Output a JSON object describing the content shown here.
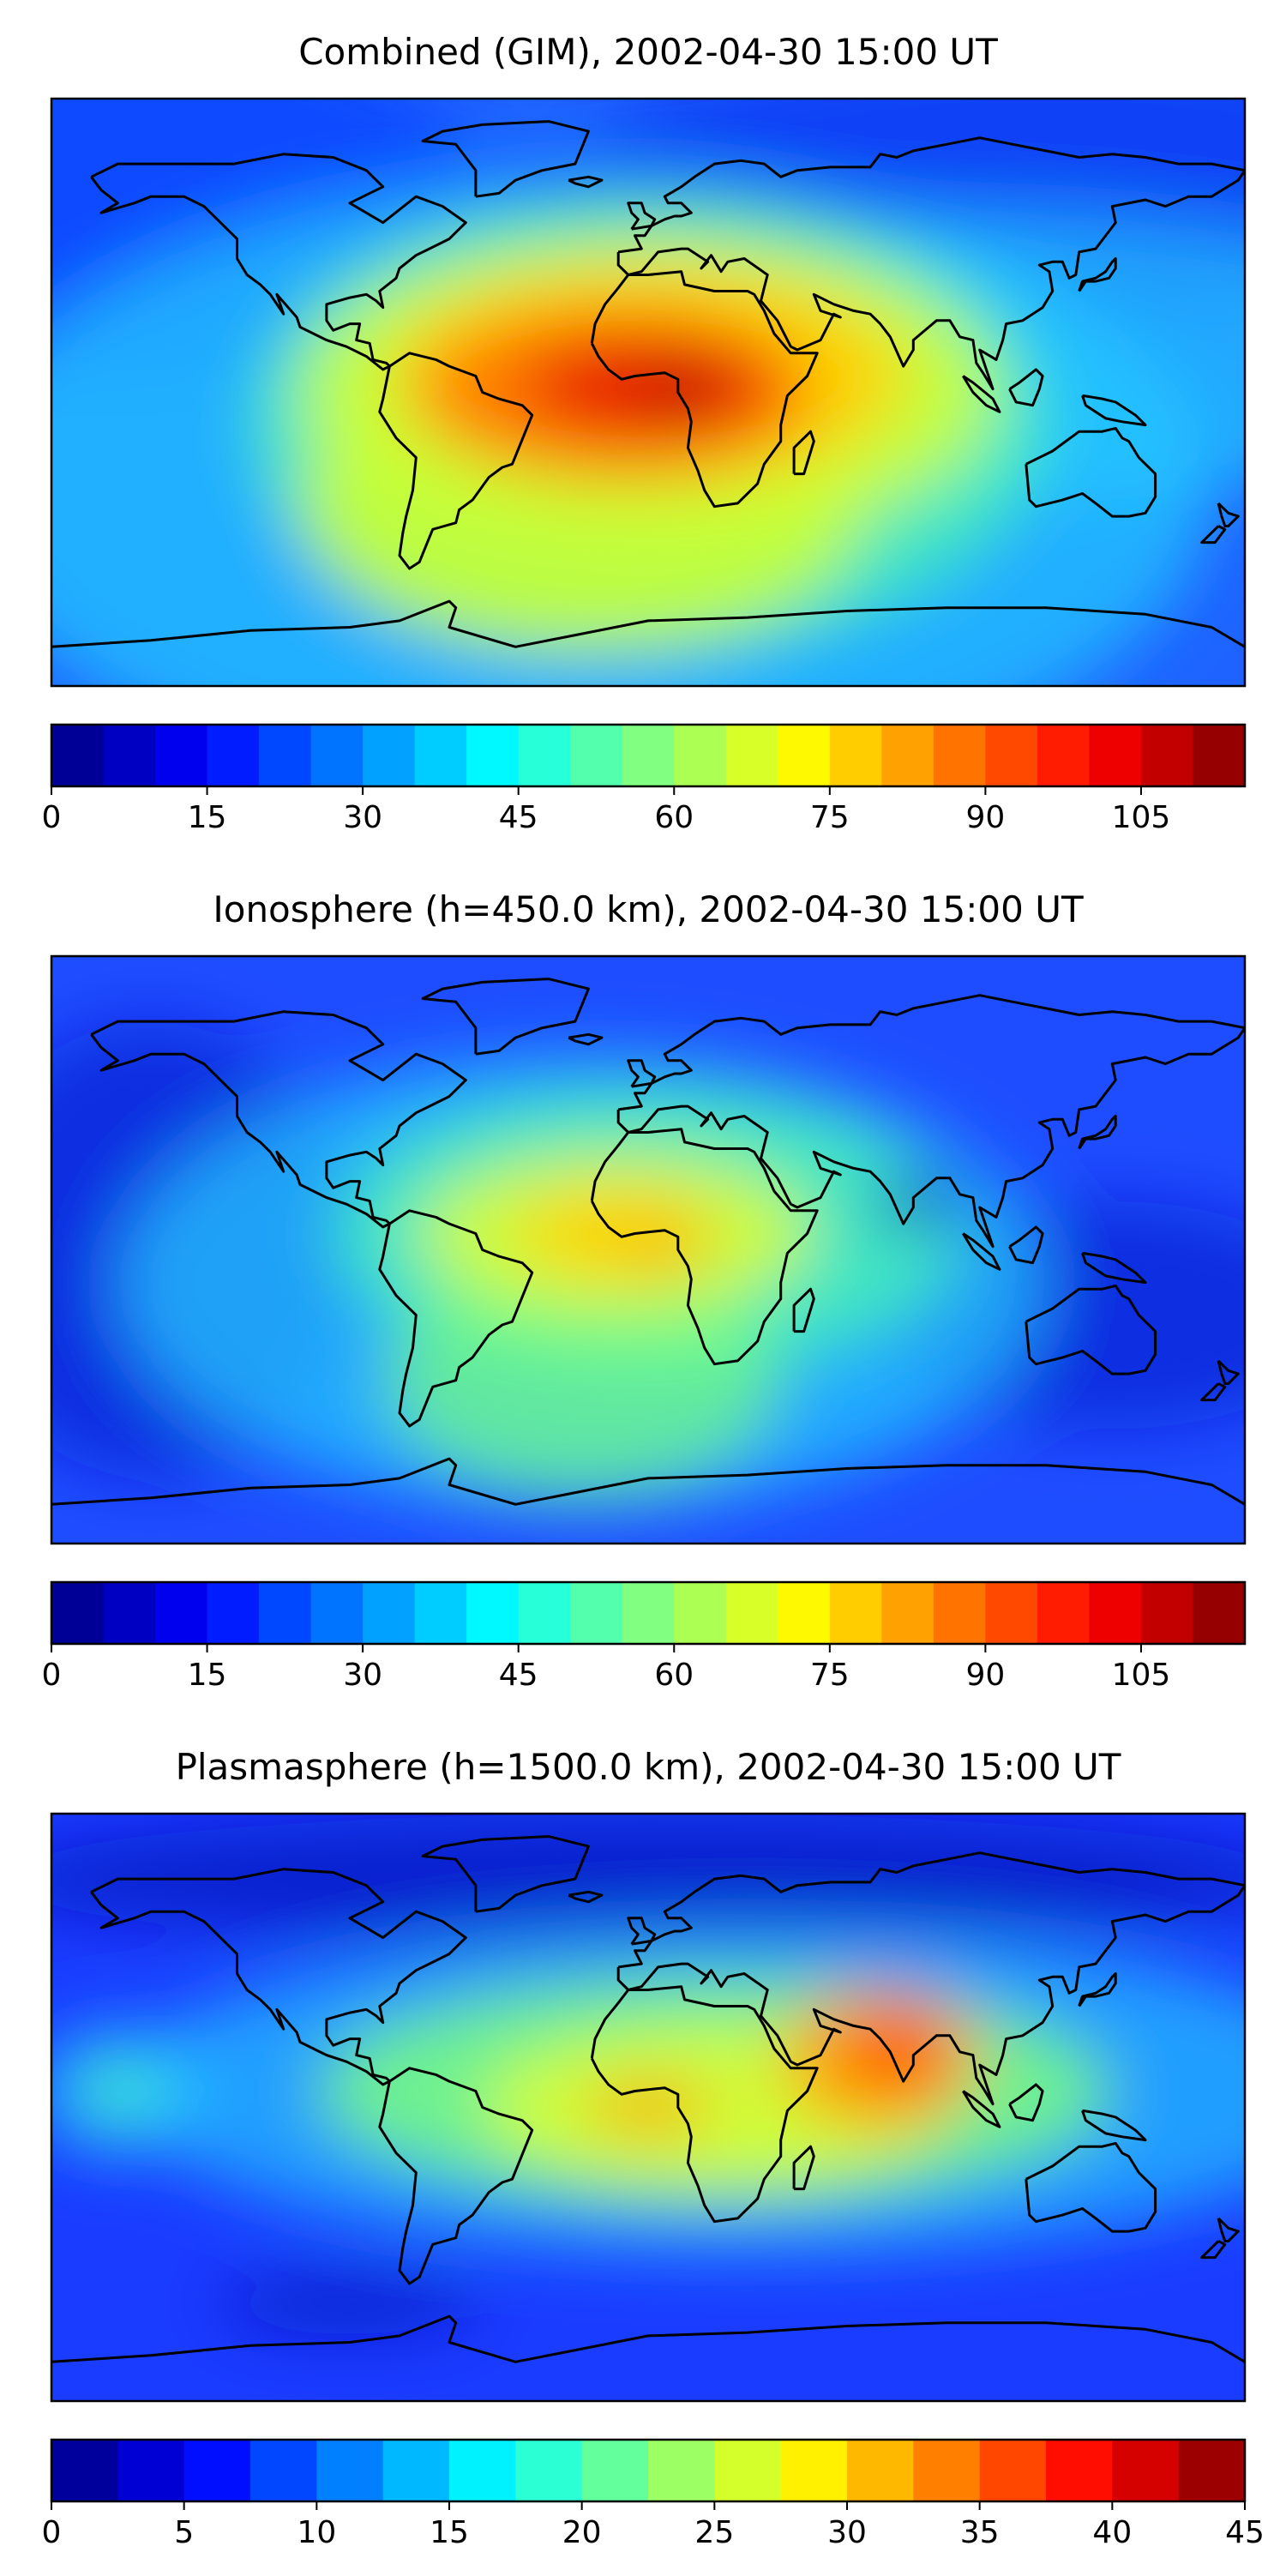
{
  "figure": {
    "panels": [
      {
        "title": "Combined (GIM), 2002-04-30 15:00 UT",
        "map_background_color": "#1e63ff",
        "blobs": [
          {
            "lon": -170,
            "lat": 60,
            "rx": 120,
            "ry": 55,
            "color": "#0033ff",
            "opacity": 0.55
          },
          {
            "lon": 120,
            "lat": 65,
            "rx": 140,
            "ry": 45,
            "color": "#0022ee",
            "opacity": 0.5
          },
          {
            "lon": -20,
            "lat": -30,
            "rx": 190,
            "ry": 95,
            "color": "#22c8ff",
            "opacity": 0.75
          },
          {
            "lon": 90,
            "lat": 10,
            "rx": 170,
            "ry": 45,
            "color": "#22c8ff",
            "opacity": 0.7
          },
          {
            "lon": 0,
            "lat": -10,
            "rx": 120,
            "ry": 70,
            "color": "#46f0b8",
            "opacity": 0.85
          },
          {
            "lon": -20,
            "lat": -35,
            "rx": 85,
            "ry": 45,
            "color": "#c8ff36",
            "opacity": 0.9
          },
          {
            "lon": 0,
            "lat": 0,
            "rx": 105,
            "ry": 48,
            "color": "#c8ff36",
            "opacity": 0.95
          },
          {
            "lon": 0,
            "lat": 5,
            "rx": 78,
            "ry": 34,
            "color": "#ffd200",
            "opacity": 0.95
          },
          {
            "lon": -10,
            "lat": 0,
            "rx": 60,
            "ry": 26,
            "color": "#ff7a00",
            "opacity": 0.95
          },
          {
            "lon": 0,
            "lat": 2,
            "rx": 38,
            "ry": 16,
            "color": "#e81a00",
            "opacity": 0.95
          },
          {
            "lon": 10,
            "lat": 0,
            "rx": 12,
            "ry": 5,
            "color": "#8a0000",
            "opacity": 0.95
          }
        ],
        "colorbar": {
          "min": 0,
          "max": 115,
          "levels": 23,
          "ticks": [
            "0",
            "15",
            "30",
            "45",
            "60",
            "75",
            "90",
            "105"
          ],
          "tick_values": [
            0,
            15,
            30,
            45,
            60,
            75,
            90,
            105
          ]
        }
      },
      {
        "title": "Ionosphere  (h=450.0 km), 2002-04-30 15:00 UT",
        "map_background_color": "#1e4dff",
        "blobs": [
          {
            "lon": -150,
            "lat": 0,
            "rx": 60,
            "ry": 70,
            "color": "#0010c8",
            "opacity": 0.55
          },
          {
            "lon": 140,
            "lat": -20,
            "rx": 70,
            "ry": 35,
            "color": "#0010c8",
            "opacity": 0.55
          },
          {
            "lon": -20,
            "lat": -10,
            "rx": 140,
            "ry": 70,
            "color": "#22c8ff",
            "opacity": 0.75
          },
          {
            "lon": 0,
            "lat": 5,
            "rx": 95,
            "ry": 45,
            "color": "#46f0b8",
            "opacity": 0.85
          },
          {
            "lon": -20,
            "lat": -40,
            "rx": 60,
            "ry": 35,
            "color": "#7cff7c",
            "opacity": 0.7
          },
          {
            "lon": -10,
            "lat": 5,
            "rx": 60,
            "ry": 25,
            "color": "#d8ff30",
            "opacity": 0.9
          },
          {
            "lon": -10,
            "lat": 5,
            "rx": 30,
            "ry": 14,
            "color": "#ffd200",
            "opacity": 0.95
          },
          {
            "lon": 5,
            "lat": 0,
            "rx": 12,
            "ry": 6,
            "color": "#ffa000",
            "opacity": 0.95
          },
          {
            "lon": 82,
            "lat": 15,
            "rx": 14,
            "ry": 8,
            "color": "#0010c8",
            "opacity": 0.8
          }
        ],
        "colorbar": {
          "min": 0,
          "max": 115,
          "levels": 23,
          "ticks": [
            "0",
            "15",
            "30",
            "45",
            "60",
            "75",
            "90",
            "105"
          ],
          "tick_values": [
            0,
            15,
            30,
            45,
            60,
            75,
            90,
            105
          ]
        }
      },
      {
        "title": "Plasmasphere (h=1500.0 km), 2002-04-30 15:00 UT",
        "map_background_color": "#1a3cff",
        "blobs": [
          {
            "lon": 0,
            "lat": 70,
            "rx": 200,
            "ry": 20,
            "color": "#0010b4",
            "opacity": 0.65
          },
          {
            "lon": -90,
            "lat": -60,
            "rx": 40,
            "ry": 10,
            "color": "#0010b4",
            "opacity": 0.6
          },
          {
            "lon": 30,
            "lat": 5,
            "rx": 190,
            "ry": 50,
            "color": "#22c8ff",
            "opacity": 0.7
          },
          {
            "lon": -160,
            "lat": 5,
            "rx": 25,
            "ry": 20,
            "color": "#22c8ff",
            "opacity": 0.8
          },
          {
            "lon": -160,
            "lat": 5,
            "rx": 12,
            "ry": 8,
            "color": "#46f0b8",
            "opacity": 0.9
          },
          {
            "lon": 20,
            "lat": 5,
            "rx": 120,
            "ry": 35,
            "color": "#7cff7c",
            "opacity": 0.85
          },
          {
            "lon": 20,
            "lat": 0,
            "rx": 70,
            "ry": 25,
            "color": "#d8ff30",
            "opacity": 0.9
          },
          {
            "lon": 70,
            "lat": 15,
            "rx": 30,
            "ry": 22,
            "color": "#ffa000",
            "opacity": 0.95
          },
          {
            "lon": 75,
            "lat": 17,
            "rx": 16,
            "ry": 12,
            "color": "#ff5000",
            "opacity": 0.95
          },
          {
            "lon": 0,
            "lat": 0,
            "rx": 20,
            "ry": 8,
            "color": "#ffa000",
            "opacity": 0.9
          }
        ],
        "colorbar": {
          "min": 0,
          "max": 45,
          "levels": 18,
          "ticks": [
            "0",
            "5",
            "10",
            "15",
            "20",
            "25",
            "30",
            "35",
            "40",
            "45"
          ],
          "tick_values": [
            0,
            5,
            10,
            15,
            20,
            25,
            30,
            35,
            40,
            45
          ]
        }
      }
    ]
  },
  "chart_data": [
    {
      "type": "heatmap",
      "title": "Combined (GIM), 2002-04-30 15:00 UT",
      "projection": "global map (PlateCarree), longitude -180 to 180, latitude -90 to 90",
      "colorbar_range": [
        0,
        115
      ],
      "colorbar_ticks": [
        0,
        15,
        30,
        45,
        60,
        75,
        90,
        105
      ],
      "colormap": "jet",
      "notable": "Maximum (~105-115) over equatorial Atlantic / central Africa near 0-10E, 0N; minimum (~5-10) over polar and Pacific regions"
    },
    {
      "type": "heatmap",
      "title": "Ionosphere  (h=450.0 km), 2002-04-30 15:00 UT",
      "colorbar_range": [
        0,
        115
      ],
      "colorbar_ticks": [
        0,
        15,
        30,
        45,
        60,
        75,
        90,
        105
      ],
      "colormap": "jet",
      "notable": "Maximum (~75-85) over equatorial Atlantic near 0N 0E; low values (~10) over Pacific and Indian Ocean"
    },
    {
      "type": "heatmap",
      "title": "Plasmasphere (h=1500.0 km), 2002-04-30 15:00 UT",
      "colorbar_range": [
        0,
        45
      ],
      "colorbar_ticks": [
        0,
        5,
        10,
        15,
        20,
        25,
        30,
        35,
        40,
        45
      ],
      "colormap": "jet",
      "notable": "Maximum (~35-40) over Arabian Sea near 70E 15N; minimum (~5) over polar regions"
    }
  ]
}
